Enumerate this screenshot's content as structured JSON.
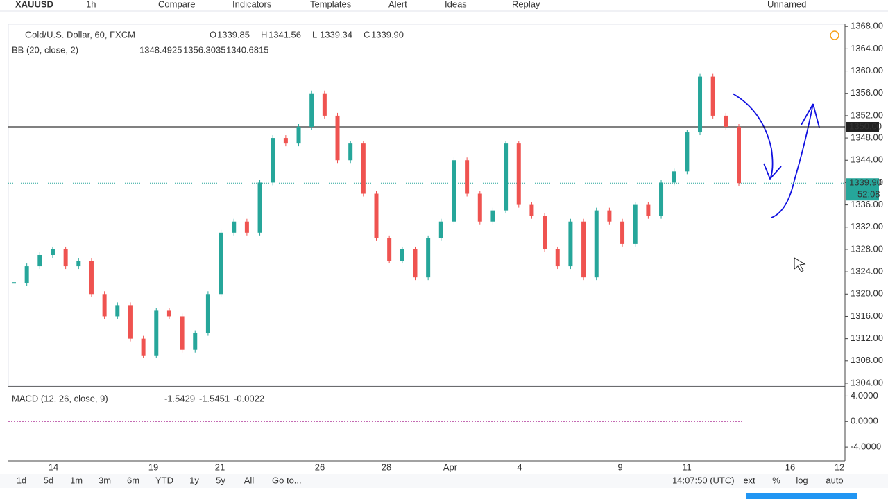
{
  "toolbar": {
    "symbol": "XAUUSD",
    "interval": "1h",
    "items": [
      "Compare",
      "Indicators",
      "Templates",
      "Alert",
      "Ideas",
      "Replay"
    ],
    "layout": "Unnamed"
  },
  "legend": {
    "title": "Gold/U.S. Dollar, 60, FXCM",
    "ohlc": [
      {
        "key": "O",
        "value": "1339.85"
      },
      {
        "key": "H",
        "value": "1341.56"
      },
      {
        "key": "L",
        "value": "1339.34"
      },
      {
        "key": "C",
        "value": "1339.90"
      }
    ]
  },
  "bb": {
    "label": "BB (20, close, 2)",
    "values": [
      "1348.4925",
      "1356.3035",
      "1340.6815"
    ]
  },
  "price_axis": {
    "ylim": [
      1303.5,
      1368.4
    ],
    "ticks": [
      {
        "value": 1304,
        "label": "1304.00"
      },
      {
        "value": 1308,
        "label": "1308.00"
      },
      {
        "value": 1312,
        "label": "1312.00"
      },
      {
        "value": 1316,
        "label": "1316.00"
      },
      {
        "value": 1320,
        "label": "1320.00"
      },
      {
        "value": 1324,
        "label": "1324.00"
      },
      {
        "value": 1328,
        "label": "1328.00"
      },
      {
        "value": 1332,
        "label": "1332.00"
      },
      {
        "value": 1336,
        "label": "1336.00"
      },
      {
        "value": 1340,
        "label": "1340.00"
      },
      {
        "value": 1344,
        "label": "1344.00"
      },
      {
        "value": 1348,
        "label": "1348.00"
      },
      {
        "value": 1352,
        "label": "1352.00"
      },
      {
        "value": 1356,
        "label": "1356.00"
      },
      {
        "value": 1360,
        "label": "1360.00"
      },
      {
        "value": 1364,
        "label": "1364.00"
      },
      {
        "value": 1368,
        "label": "1368.00"
      }
    ]
  },
  "horizontal_line": {
    "value": 1350,
    "label": "1350.00"
  },
  "last_price": {
    "value": 1339.9,
    "label": "1339.90",
    "countdown": "52:08"
  },
  "closes": [
    1322,
    1325,
    1327,
    1328,
    1325,
    1326,
    1320,
    1316,
    1318,
    1312,
    1309,
    1317,
    1316,
    1310,
    1313,
    1320,
    1331,
    1333,
    1331,
    1340,
    1348,
    1347,
    1350,
    1356,
    1352,
    1344,
    1347,
    1338,
    1330,
    1326,
    1328,
    1323,
    1330,
    1333,
    1344,
    1338,
    1333,
    1335,
    1347,
    1336,
    1334,
    1328,
    1325,
    1333,
    1323,
    1335,
    1333,
    1329,
    1336,
    1334,
    1340,
    1342,
    1349,
    1359,
    1352,
    1350,
    1339.9
  ],
  "macd": {
    "label": "MACD (12, 26, close, 9)",
    "values": [
      "-1.5429",
      "-1.5451",
      "-0.0022"
    ],
    "ylim": [
      -6.05,
      5.35
    ],
    "ticks": [
      {
        "value": 4,
        "label": "4.0000"
      },
      {
        "value": 0,
        "label": "0.0000"
      },
      {
        "value": -4,
        "label": "-4.0000"
      }
    ]
  },
  "time_axis": [
    "14",
    "19",
    "21",
    "26",
    "28",
    "Apr",
    "4",
    "9",
    "11",
    "16",
    "12"
  ],
  "bottom_bar": {
    "ranges": [
      "1d",
      "5d",
      "1m",
      "3m",
      "6m",
      "YTD",
      "1y",
      "5y",
      "All"
    ],
    "goto": "Go to...",
    "clock": "14:07:50 (UTC)",
    "options": [
      "ext",
      "%",
      "log",
      "auto"
    ]
  }
}
